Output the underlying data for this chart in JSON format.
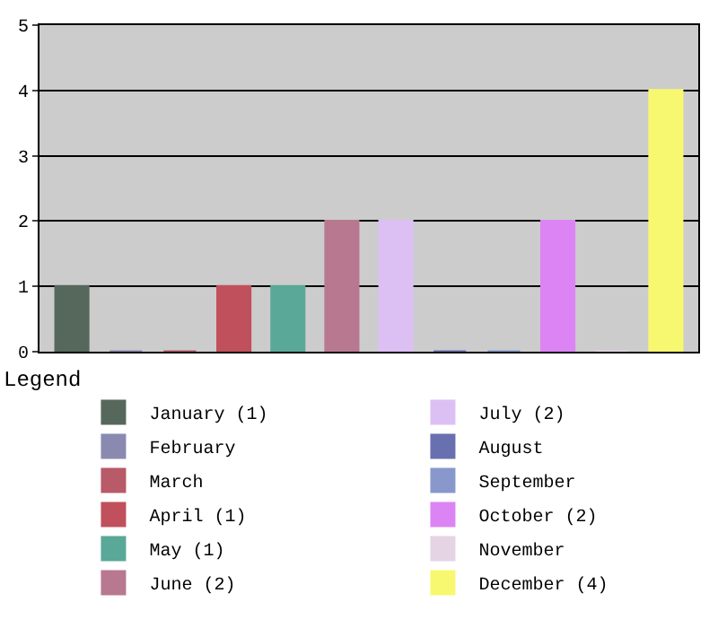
{
  "chart_data": {
    "type": "bar",
    "legend_title": "Legend",
    "categories": [
      null,
      null,
      null,
      null,
      null,
      null,
      null,
      null,
      null,
      null,
      null,
      null
    ],
    "series": [
      {
        "name": "January (1)",
        "color": "#56685c",
        "values": [
          1,
          null,
          null,
          null,
          null,
          null,
          null,
          null,
          null,
          null,
          null,
          null
        ]
      },
      {
        "name": "February",
        "color": "#8a8ab0",
        "values": [
          null,
          0,
          null,
          null,
          null,
          null,
          null,
          null,
          null,
          null,
          null,
          null
        ]
      },
      {
        "name": "March",
        "color": "#b85a68",
        "values": [
          null,
          null,
          0,
          null,
          null,
          null,
          null,
          null,
          null,
          null,
          null,
          null
        ]
      },
      {
        "name": "April (1)",
        "color": "#c0505c",
        "values": [
          null,
          null,
          null,
          1,
          null,
          null,
          null,
          null,
          null,
          null,
          null,
          null
        ]
      },
      {
        "name": "May (1)",
        "color": "#5aa898",
        "values": [
          null,
          null,
          null,
          null,
          1,
          null,
          null,
          null,
          null,
          null,
          null,
          null
        ]
      },
      {
        "name": "June (2)",
        "color": "#b87890",
        "values": [
          null,
          null,
          null,
          null,
          null,
          2,
          null,
          null,
          null,
          null,
          null,
          null
        ]
      },
      {
        "name": "July (2)",
        "color": "#dcc0f4",
        "values": [
          null,
          null,
          null,
          null,
          null,
          null,
          2,
          null,
          null,
          null,
          null,
          null
        ]
      },
      {
        "name": "August",
        "color": "#6870b0",
        "values": [
          null,
          null,
          null,
          null,
          null,
          null,
          null,
          0,
          null,
          null,
          null,
          null
        ]
      },
      {
        "name": "September",
        "color": "#8898cc",
        "values": [
          null,
          null,
          null,
          null,
          null,
          null,
          null,
          null,
          0,
          null,
          null,
          null
        ]
      },
      {
        "name": "October (2)",
        "color": "#dc84f4",
        "values": [
          null,
          null,
          null,
          null,
          null,
          null,
          null,
          null,
          null,
          2,
          null,
          null
        ]
      },
      {
        "name": "November",
        "color": "#e4d4e4",
        "values": [
          null,
          null,
          null,
          null,
          null,
          null,
          null,
          null,
          null,
          null,
          0,
          null
        ]
      },
      {
        "name": "December (4)",
        "color": "#f8f870",
        "values": [
          null,
          null,
          null,
          null,
          null,
          null,
          null,
          null,
          null,
          null,
          null,
          4
        ]
      }
    ],
    "ylim": [
      0,
      5
    ],
    "yticks": [
      0,
      1,
      2,
      3,
      4,
      5
    ],
    "grid": "y",
    "legend": "bottom"
  }
}
